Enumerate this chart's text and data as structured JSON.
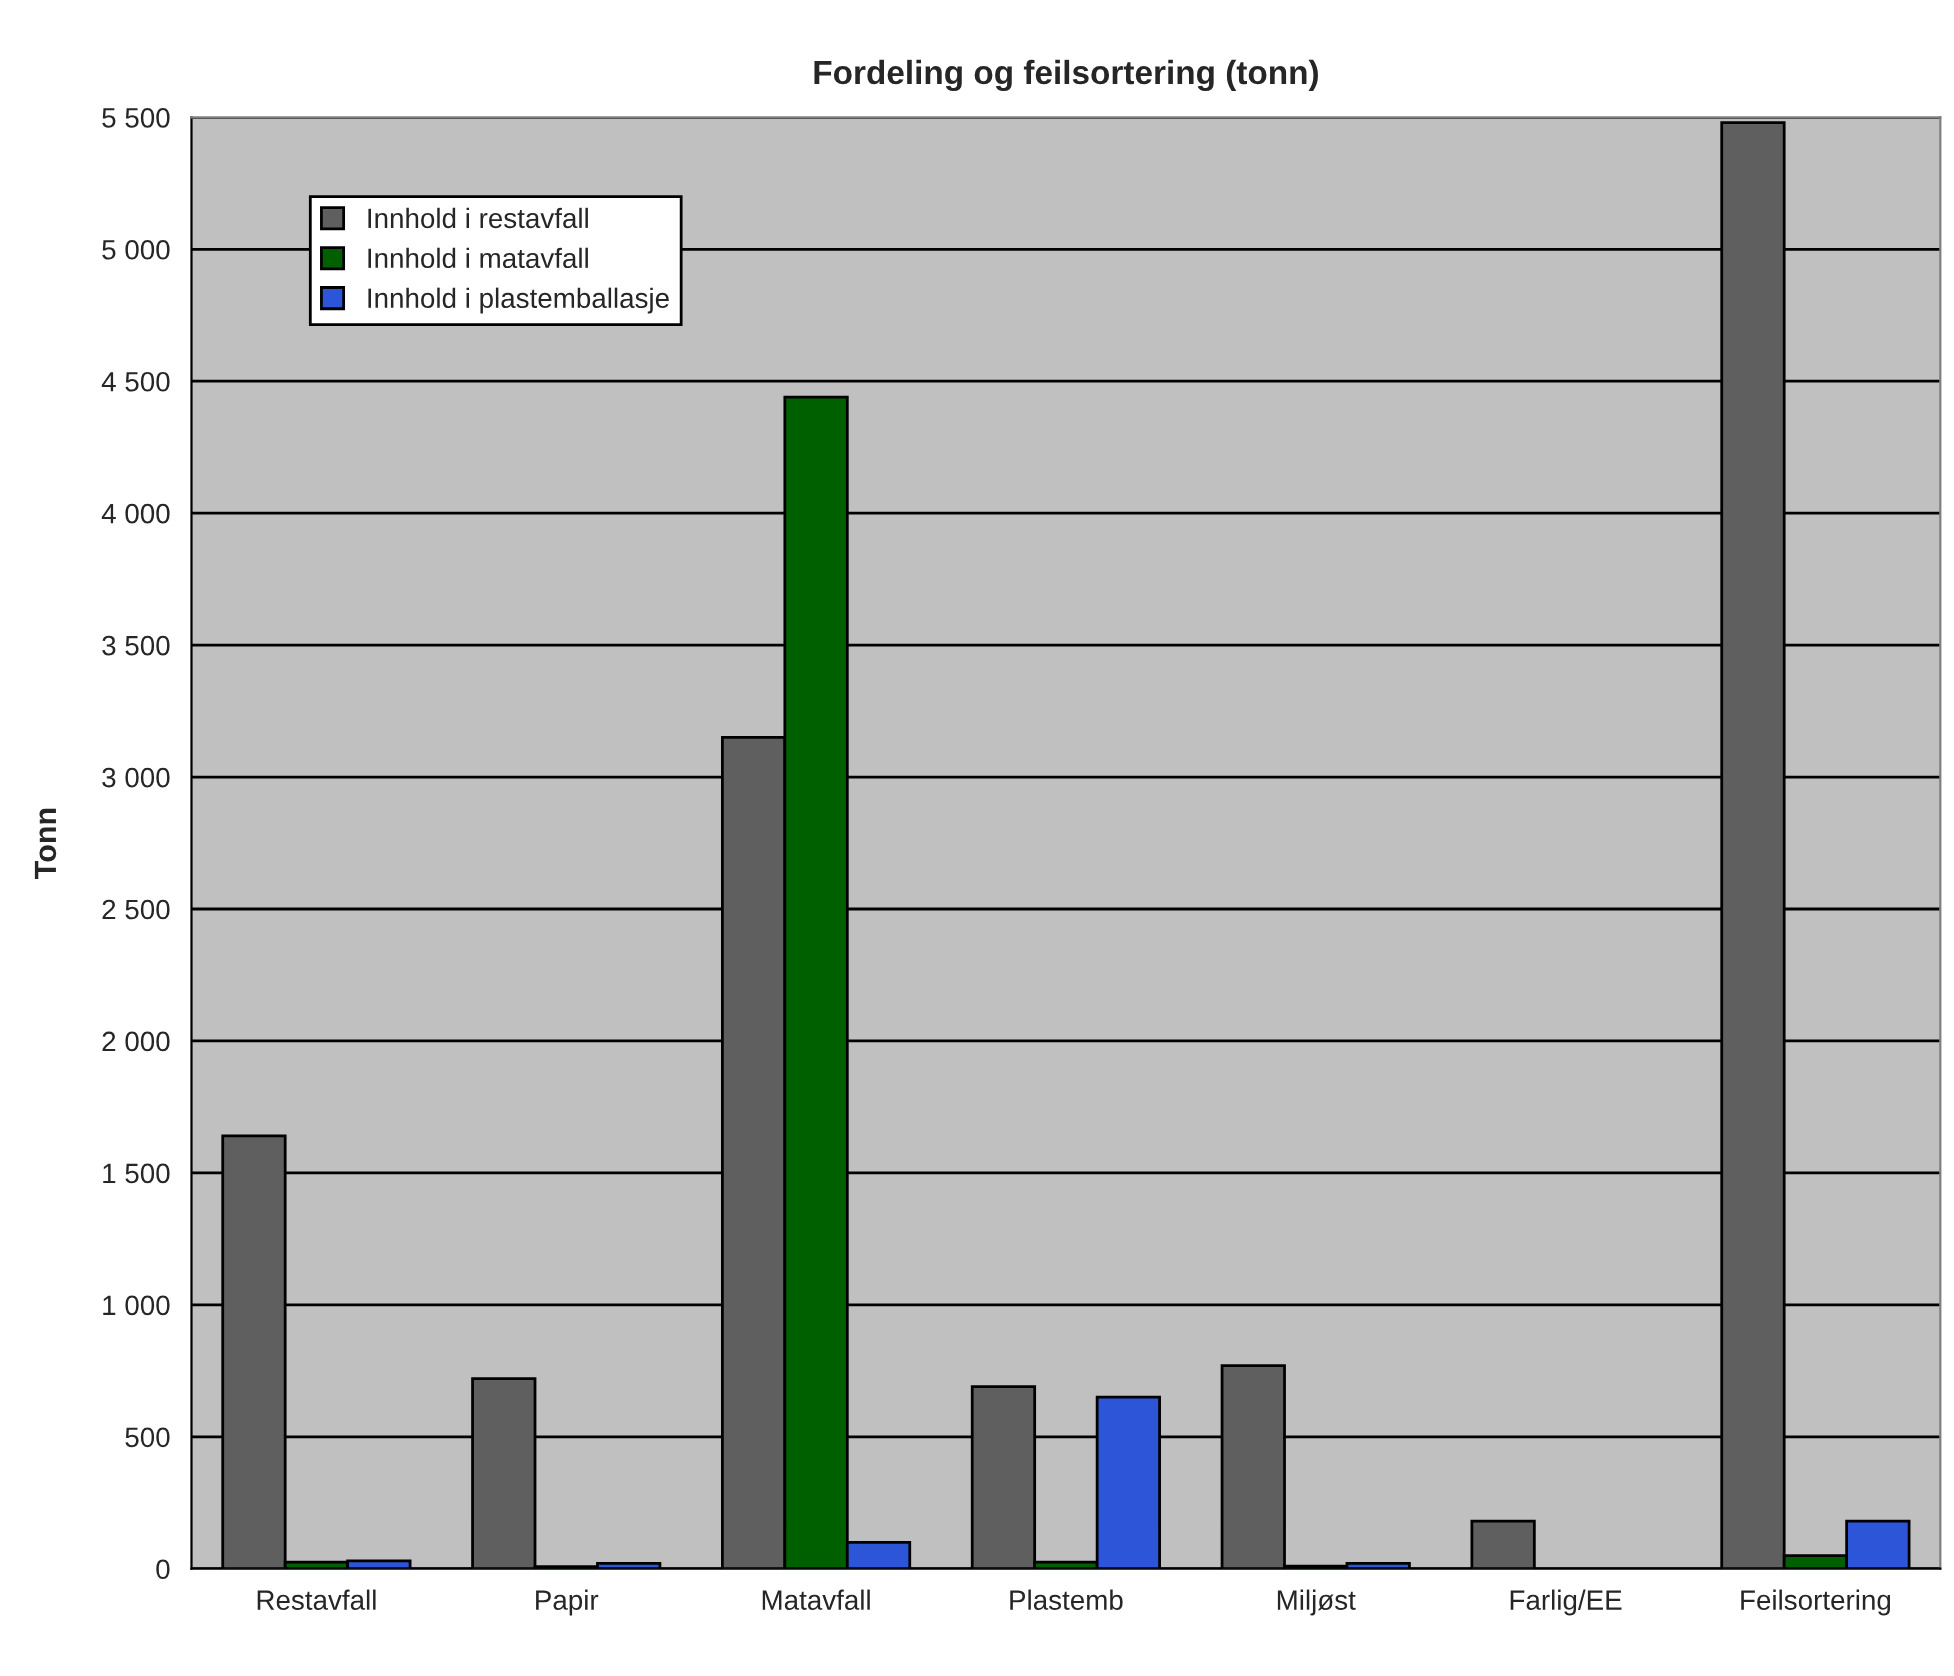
{
  "chart_data": {
    "type": "bar",
    "title": "Fordeling og feilsortering (tonn)",
    "ylabel": "Tonn",
    "categories": [
      "Restavfall",
      "Papir",
      "Matavfall",
      "Plastemb",
      "Miljøst",
      "Farlig/EE",
      "Feilsortering"
    ],
    "series": [
      {
        "name": "Innhold i restavfall",
        "color": "#5f5f5f",
        "values": [
          1640,
          720,
          3150,
          690,
          770,
          180,
          5480
        ]
      },
      {
        "name": "Innhold i matavfall",
        "color": "#006000",
        "values": [
          25,
          8,
          4440,
          25,
          10,
          null,
          50
        ]
      },
      {
        "name": "Innhold i plastemballasje",
        "color": "#2c55d8",
        "values": [
          30,
          20,
          100,
          650,
          20,
          null,
          180
        ]
      }
    ],
    "ylim": [
      0,
      5500
    ],
    "yticks": [
      0,
      500,
      {
        "value": 1000,
        "label": "1 000"
      },
      {
        "value": 1500,
        "label": "1 500"
      },
      {
        "value": 2000,
        "label": "2 000"
      },
      {
        "value": 2500,
        "label": "2 500"
      },
      {
        "value": 3000,
        "label": "3 000"
      },
      {
        "value": 3500,
        "label": "3 500"
      },
      {
        "value": 4000,
        "label": "4 000"
      },
      {
        "value": 4500,
        "label": "4 500"
      },
      {
        "value": 5000,
        "label": "5 000"
      },
      {
        "value": 5500,
        "label": "5 500"
      }
    ],
    "grid": "y",
    "legend": "top left"
  }
}
